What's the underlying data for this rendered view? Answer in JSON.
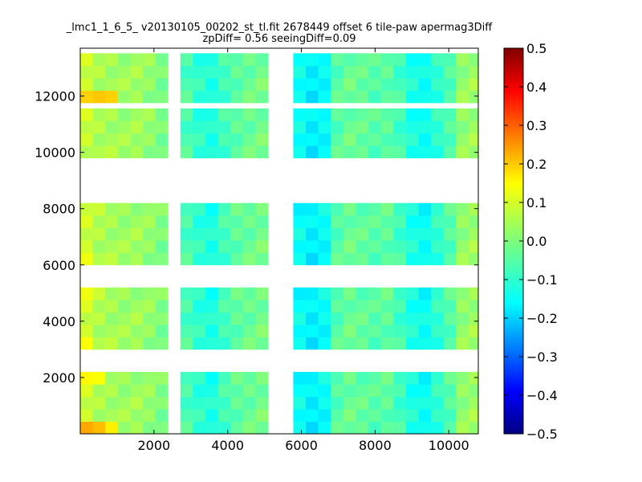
{
  "chart_data": {
    "type": "heatmap",
    "title_line1": "_lmc1_1_6_5_ v20130105_00202_st_tl.fit 2678449 offset 6 tile-paw apermag3Diff",
    "title_line2": "zpDiff= 0.56 seeingDiff=0.09",
    "xlim": [
      0,
      10800
    ],
    "ylim": [
      0,
      13700
    ],
    "x_ticks": [
      2000,
      4000,
      6000,
      8000,
      10000
    ],
    "y_ticks": [
      2000,
      4000,
      6000,
      8000,
      10000,
      12000
    ],
    "x_tick_labels": [
      "2000",
      "4000",
      "6000",
      "8000",
      "10000"
    ],
    "y_tick_labels": [
      "2000",
      "4000",
      "6000",
      "8000",
      "10000",
      "12000"
    ],
    "colorbar": {
      "vmin": -0.5,
      "vmax": 0.5,
      "colormap": "jet",
      "ticks": [
        0.5,
        0.4,
        0.3,
        0.2,
        0.1,
        0.0,
        -0.1,
        -0.2,
        -0.3,
        -0.4,
        -0.5
      ],
      "tick_labels": [
        "0.5",
        "0.4",
        "0.3",
        "0.2",
        "0.1",
        "0.0",
        "−0.1",
        "−0.2",
        "−0.3",
        "−0.4",
        "−0.5"
      ]
    },
    "cell_size": [
      340,
      440
    ],
    "columns_x_start": [
      0,
      340,
      680,
      1020,
      1360,
      1700,
      2040,
      2720,
      3060,
      3400,
      3740,
      4080,
      4420,
      4760,
      5780,
      6120,
      6460,
      6800,
      7140,
      7480,
      7820,
      8160,
      8500,
      8840,
      9180,
      9520,
      9860,
      10200,
      10540
    ],
    "tile_rows": [
      {
        "y0": 0,
        "rows": 5
      },
      {
        "y0": 3000,
        "rows": 5
      },
      {
        "y0": 6000,
        "rows": 5
      },
      {
        "y0": 9800,
        "rows": 4
      },
      {
        "y0": 11760,
        "rows": 4
      }
    ],
    "column_base_values": [
      0.07,
      0.05,
      0.04,
      0.03,
      0.03,
      0.02,
      0.0,
      -0.05,
      -0.08,
      -0.1,
      -0.06,
      -0.03,
      -0.02,
      -0.01,
      -0.12,
      -0.14,
      -0.12,
      -0.04,
      -0.02,
      -0.03,
      -0.04,
      -0.03,
      -0.06,
      -0.1,
      -0.12,
      -0.08,
      -0.04,
      0.02,
      0.03
    ],
    "hot_cells": [
      {
        "x": 0,
        "y": 0,
        "value": 0.21
      },
      {
        "x": 340,
        "y": 0,
        "value": 0.19
      },
      {
        "x": 680,
        "y": 0,
        "value": 0.14
      },
      {
        "x": 0,
        "y": 1760,
        "value": 0.13
      },
      {
        "x": 340,
        "y": 1760,
        "value": 0.12
      },
      {
        "x": 0,
        "y": 3000,
        "value": 0.12
      },
      {
        "x": 0,
        "y": 4760,
        "value": 0.11
      },
      {
        "x": 0,
        "y": 6000,
        "value": 0.11
      },
      {
        "x": 0,
        "y": 8760,
        "value": 0.15
      },
      {
        "x": 340,
        "y": 8760,
        "value": 0.16
      },
      {
        "x": 680,
        "y": 10200,
        "value": 0.19
      },
      {
        "x": 1020,
        "y": 10200,
        "value": 0.18
      },
      {
        "x": 1360,
        "y": 10200,
        "value": 0.17
      },
      {
        "x": 3060,
        "y": 10200,
        "value": 0.24
      },
      {
        "x": 3740,
        "y": 10200,
        "value": 0.12
      },
      {
        "x": 4080,
        "y": 10200,
        "value": 0.14
      },
      {
        "x": 4420,
        "y": 10200,
        "value": 0.27
      },
      {
        "x": 5780,
        "y": 10200,
        "value": 0.12
      },
      {
        "x": 6120,
        "y": 10200,
        "value": 0.12
      },
      {
        "x": 6460,
        "y": 10200,
        "value": 0.11
      },
      {
        "x": 7140,
        "y": 10200,
        "value": 0.19
      },
      {
        "x": 0,
        "y": 11760,
        "value": 0.17
      },
      {
        "x": 340,
        "y": 11760,
        "value": 0.18
      },
      {
        "x": 680,
        "y": 11760,
        "value": 0.17
      },
      {
        "x": 1700,
        "y": 500,
        "value": 0.09
      },
      {
        "x": 8160,
        "y": 9400,
        "value": 0.09
      },
      {
        "x": 8500,
        "y": 8960,
        "value": 0.12
      }
    ]
  }
}
